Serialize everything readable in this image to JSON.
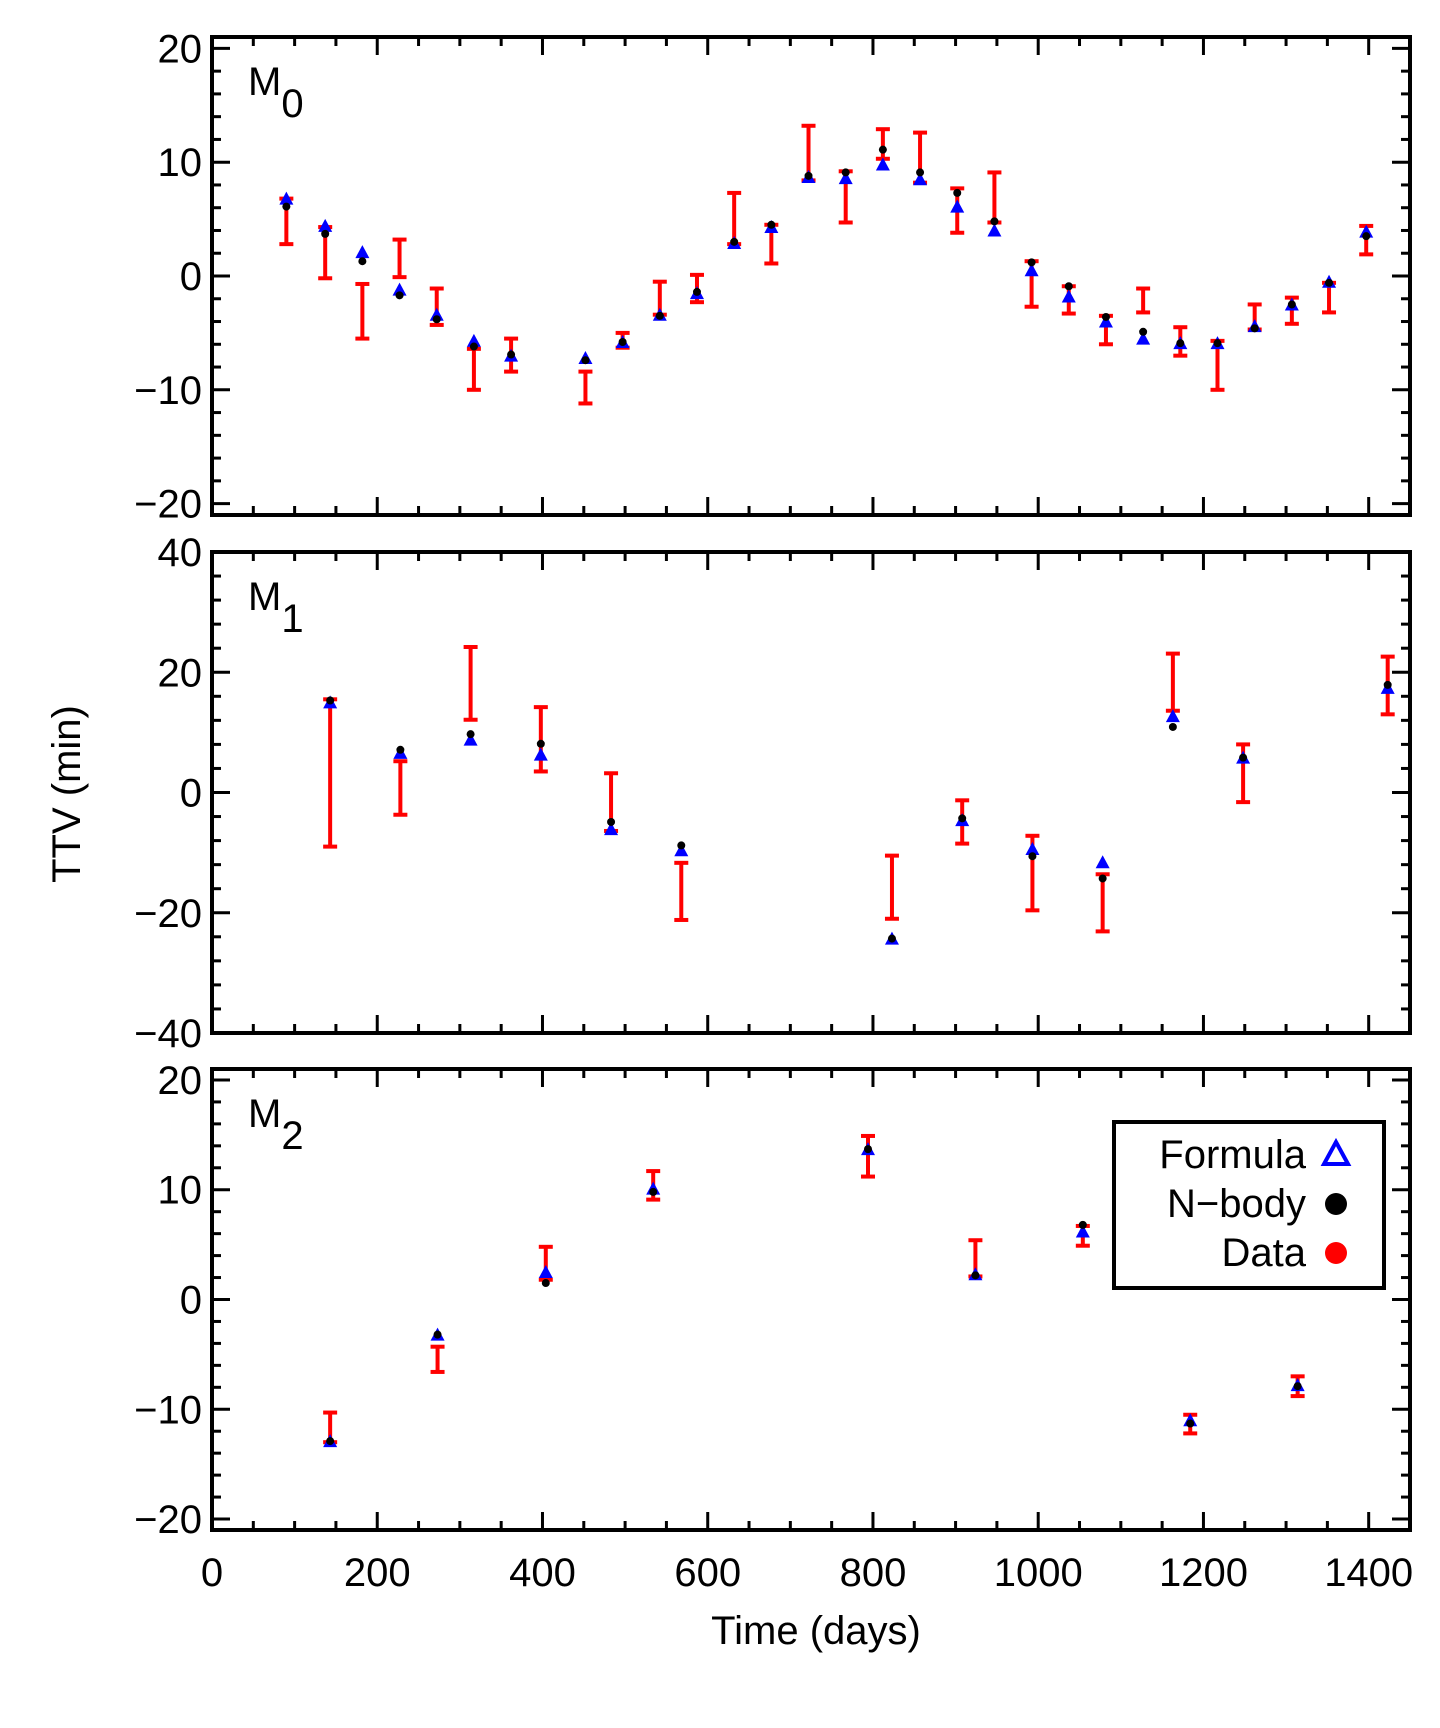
{
  "chart_data": {
    "type": "scatter",
    "ylabel": "TTV (min)",
    "xlabel": "Time (days)",
    "xlim": [
      0,
      1450
    ],
    "xticks": [
      "0",
      "200",
      "400",
      "600",
      "800",
      "1000",
      "1200",
      "1400"
    ],
    "legend": {
      "position": "bottom-panel right",
      "entries": [
        {
          "label": "Formula",
          "marker": "open-triangle",
          "color": "#0000ff"
        },
        {
          "label": "N−body",
          "marker": "filled-circle",
          "color": "#000000"
        },
        {
          "label": "Data",
          "marker": "filled-circle",
          "color": "#ff0000"
        }
      ]
    },
    "colors": {
      "data": "#ff0000",
      "formula": "#0000ff",
      "nbody": "#000000"
    },
    "panels": [
      {
        "label_main": "M",
        "label_sub": "0",
        "ylim": [
          -21,
          21
        ],
        "yticks": [
          "20",
          "10",
          "0",
          "−10",
          "−20"
        ],
        "points": [
          {
            "t": 90,
            "data": [
              2.8,
              6.8
            ],
            "formula": 6.8,
            "nbody": 6.1
          },
          {
            "t": 137,
            "data": [
              -0.2,
              4.3
            ],
            "formula": 4.4,
            "nbody": 3.7
          },
          {
            "t": 182,
            "data": [
              -5.5,
              -0.7
            ],
            "formula": 2.1,
            "nbody": 1.3
          },
          {
            "t": 227,
            "data": [
              -0.1,
              3.2
            ],
            "formula": -1.2,
            "nbody": -1.7
          },
          {
            "t": 272,
            "data": [
              -4.3,
              -1.1
            ],
            "formula": -3.4,
            "nbody": -3.8
          },
          {
            "t": 317,
            "data": [
              -10.0,
              -6.4
            ],
            "formula": -5.7,
            "nbody": -6.2
          },
          {
            "t": 362,
            "data": [
              -8.4,
              -5.5
            ],
            "formula": -7.0,
            "nbody": -6.9
          },
          {
            "t": 452,
            "data": [
              -11.2,
              -8.4
            ],
            "formula": -7.2,
            "nbody": -7.4
          },
          {
            "t": 497,
            "data": [
              -6.3,
              -5.0
            ],
            "formula": -5.8,
            "nbody": -5.8
          },
          {
            "t": 542,
            "data": [
              -3.4,
              -0.5
            ],
            "formula": -3.4,
            "nbody": -3.5
          },
          {
            "t": 587,
            "data": [
              -2.3,
              0.1
            ],
            "formula": -1.5,
            "nbody": -1.4
          },
          {
            "t": 632,
            "data": [
              2.8,
              7.3
            ],
            "formula": 2.9,
            "nbody": 3.0
          },
          {
            "t": 677,
            "data": [
              1.1,
              4.5
            ],
            "formula": 4.3,
            "nbody": 4.5
          },
          {
            "t": 722,
            "data": [
              8.4,
              13.2
            ],
            "formula": 8.7,
            "nbody": 8.8
          },
          {
            "t": 767,
            "data": [
              4.7,
              9.2
            ],
            "formula": 8.6,
            "nbody": 9.1
          },
          {
            "t": 812,
            "data": [
              10.3,
              12.9
            ],
            "formula": 9.8,
            "nbody": 11.1
          },
          {
            "t": 857,
            "data": [
              8.2,
              12.6
            ],
            "formula": 8.5,
            "nbody": 9.1
          },
          {
            "t": 902,
            "data": [
              3.8,
              7.7
            ],
            "formula": 6.1,
            "nbody": 7.3
          },
          {
            "t": 947,
            "data": [
              4.7,
              9.1
            ],
            "formula": 4.0,
            "nbody": 4.8
          },
          {
            "t": 992,
            "data": [
              -2.7,
              1.3
            ],
            "formula": 0.5,
            "nbody": 1.2
          },
          {
            "t": 1037,
            "data": [
              -3.3,
              -0.9
            ],
            "formula": -1.8,
            "nbody": -0.9
          },
          {
            "t": 1082,
            "data": [
              -6.0,
              -3.5
            ],
            "formula": -4.0,
            "nbody": -3.6
          },
          {
            "t": 1127,
            "data": [
              -3.2,
              -1.1
            ],
            "formula": -5.5,
            "nbody": -4.9
          },
          {
            "t": 1172,
            "data": [
              -7.0,
              -4.5
            ],
            "formula": -5.9,
            "nbody": -5.9
          },
          {
            "t": 1217,
            "data": [
              -10.0,
              -5.7
            ],
            "formula": -5.9,
            "nbody": -5.9
          },
          {
            "t": 1262,
            "data": [
              -4.7,
              -2.5
            ],
            "formula": -4.4,
            "nbody": -4.6
          },
          {
            "t": 1307,
            "data": [
              -4.2,
              -1.9
            ],
            "formula": -2.5,
            "nbody": -2.5
          },
          {
            "t": 1352,
            "data": [
              -3.2,
              -0.6
            ],
            "formula": -0.5,
            "nbody": -0.6
          },
          {
            "t": 1397,
            "data": [
              1.9,
              4.4
            ],
            "formula": 3.9,
            "nbody": 3.5
          }
        ]
      },
      {
        "label_main": "M",
        "label_sub": "1",
        "ylim": [
          -40,
          40
        ],
        "yticks": [
          "40",
          "20",
          "0",
          "−20",
          "−40"
        ],
        "points": [
          {
            "t": 143,
            "data": [
              -9.0,
              15.5
            ],
            "formula": 15.0,
            "nbody": 15.3
          },
          {
            "t": 228,
            "data": [
              -3.7,
              5.2
            ],
            "formula": 6.6,
            "nbody": 7.1
          },
          {
            "t": 313,
            "data": [
              12.1,
              24.2
            ],
            "formula": 8.8,
            "nbody": 9.7
          },
          {
            "t": 398,
            "data": [
              3.5,
              14.2
            ],
            "formula": 6.3,
            "nbody": 8.1
          },
          {
            "t": 483,
            "data": [
              -6.4,
              3.2
            ],
            "formula": -6.1,
            "nbody": -4.9
          },
          {
            "t": 568,
            "data": [
              -21.2,
              -11.7
            ],
            "formula": -9.6,
            "nbody": -8.8
          },
          {
            "t": 823,
            "data": [
              -21.0,
              -10.5
            ],
            "formula": -24.3,
            "nbody": -24.3
          },
          {
            "t": 908,
            "data": [
              -8.5,
              -1.3
            ],
            "formula": -4.6,
            "nbody": -4.3
          },
          {
            "t": 993,
            "data": [
              -19.6,
              -7.2
            ],
            "formula": -9.4,
            "nbody": -10.6
          },
          {
            "t": 1078,
            "data": [
              -23.1,
              -13.6
            ],
            "formula": -11.6,
            "nbody": -14.3
          },
          {
            "t": 1163,
            "data": [
              13.6,
              23.1
            ],
            "formula": 12.7,
            "nbody": 10.9
          },
          {
            "t": 1248,
            "data": [
              -1.6,
              8.0
            ],
            "formula": 5.8,
            "nbody": 5.8
          },
          {
            "t": 1423,
            "data": [
              13.0,
              22.6
            ],
            "formula": 17.4,
            "nbody": 17.9
          }
        ]
      },
      {
        "label_main": "M",
        "label_sub": "2",
        "ylim": [
          -21,
          21
        ],
        "yticks": [
          "20",
          "10",
          "0",
          "−10",
          "−20"
        ],
        "points": [
          {
            "t": 143,
            "data": [
              -13.0,
              -10.3
            ],
            "formula": -12.9,
            "nbody": -12.9
          },
          {
            "t": 273,
            "data": [
              -6.6,
              -4.3
            ],
            "formula": -3.2,
            "nbody": -3.2
          },
          {
            "t": 404,
            "data": [
              1.8,
              4.8
            ],
            "formula": 2.5,
            "nbody": 1.5
          },
          {
            "t": 534,
            "data": [
              9.1,
              11.7
            ],
            "formula": 10.1,
            "nbody": 9.8
          },
          {
            "t": 794,
            "data": [
              11.2,
              14.9
            ],
            "formula": 13.7,
            "nbody": 13.7
          },
          {
            "t": 924,
            "data": [
              2.1,
              5.4
            ],
            "formula": 2.3,
            "nbody": 2.2
          },
          {
            "t": 1054,
            "data": [
              4.9,
              6.7
            ],
            "formula": 6.2,
            "nbody": 6.8
          },
          {
            "t": 1184,
            "data": [
              -12.2,
              -10.5
            ],
            "formula": -11.0,
            "nbody": -11.3
          },
          {
            "t": 1314,
            "data": [
              -8.8,
              -7.0
            ],
            "formula": -7.8,
            "nbody": -7.9
          }
        ]
      }
    ]
  }
}
